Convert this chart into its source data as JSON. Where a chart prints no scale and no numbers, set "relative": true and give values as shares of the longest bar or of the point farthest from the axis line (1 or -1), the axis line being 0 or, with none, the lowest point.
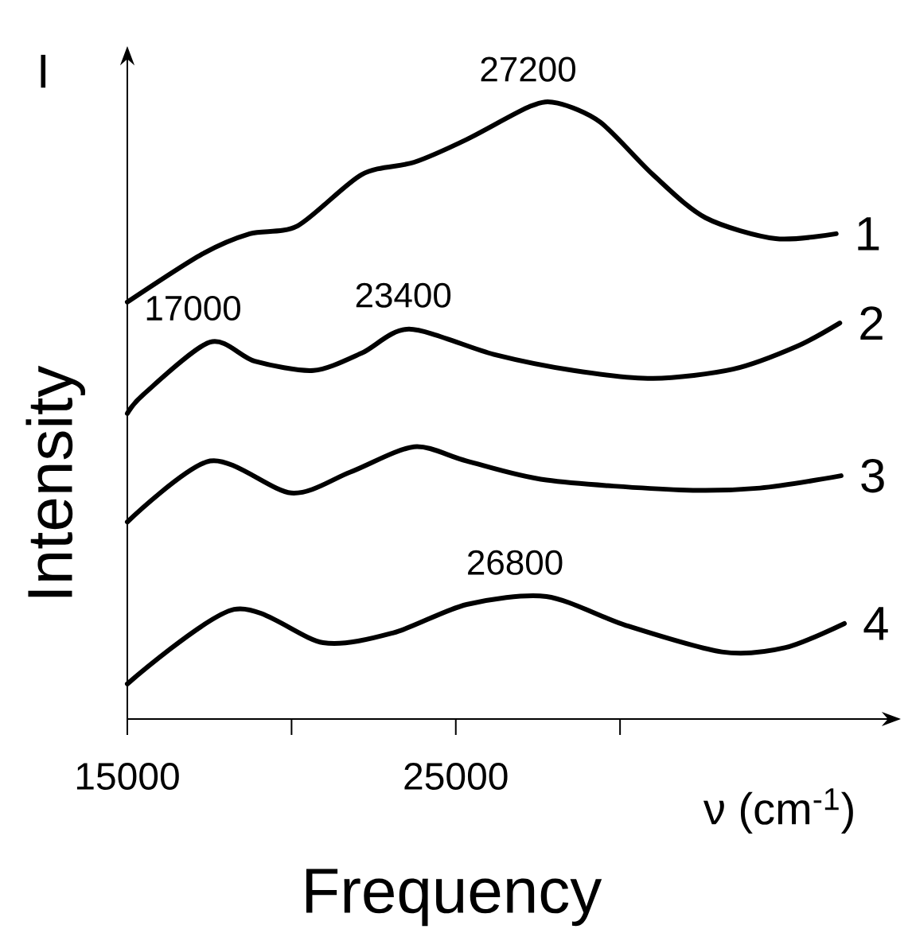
{
  "chart_data": {
    "type": "line",
    "relative": true,
    "xlabel": "Frequency",
    "ylabel": "Intensity",
    "xlim": [
      15000,
      38500
    ],
    "xticks": [
      15000,
      {
        "value": 20000,
        "label": null
      },
      25000,
      {
        "value": 30000,
        "label": null
      }
    ],
    "series": [
      {
        "name": "1",
        "color": "#000000",
        "x": [
          15000,
          17280,
          18730,
          20190,
          22130,
          23730,
          25330,
          27270,
          28100,
          29400,
          31000,
          32600,
          34740,
          36580
        ],
        "values": [
          0.677,
          0.755,
          0.788,
          0.801,
          0.884,
          0.904,
          0.941,
          0.995,
          1.0,
          0.969,
          0.884,
          0.814,
          0.78,
          0.788
        ]
      },
      {
        "name": "2",
        "color": "#000000",
        "x": [
          15000,
          15490,
          17520,
          18880,
          20670,
          22130,
          23580,
          26160,
          28580,
          31010,
          33440,
          35380,
          36690
        ],
        "values": [
          0.496,
          0.527,
          0.612,
          0.581,
          0.566,
          0.594,
          0.633,
          0.592,
          0.566,
          0.553,
          0.568,
          0.605,
          0.643
        ]
      },
      {
        "name": "3",
        "color": "#000000",
        "x": [
          15000,
          17520,
          19990,
          21790,
          23730,
          25330,
          27760,
          31830,
          34260,
          36730
        ],
        "values": [
          0.32,
          0.419,
          0.367,
          0.401,
          0.442,
          0.419,
          0.388,
          0.372,
          0.375,
          0.395
        ]
      },
      {
        "name": "4",
        "color": "#000000",
        "x": [
          15000,
          18250,
          20960,
          23100,
          25330,
          27760,
          30180,
          33100,
          35040,
          36830
        ],
        "values": [
          0.057,
          0.178,
          0.124,
          0.14,
          0.186,
          0.199,
          0.152,
          0.109,
          0.116,
          0.155
        ]
      }
    ],
    "annotations": [
      {
        "text": "27200",
        "x": 27200,
        "y": 1.0
      },
      {
        "text": "17000",
        "x": 17000,
        "y": 0.612
      },
      {
        "text": "23400",
        "x": 23400,
        "y": 0.633
      },
      {
        "text": "26800",
        "x": 26800,
        "y": 0.199
      },
      "I",
      "ν (cm$^{-1}$)"
    ]
  }
}
